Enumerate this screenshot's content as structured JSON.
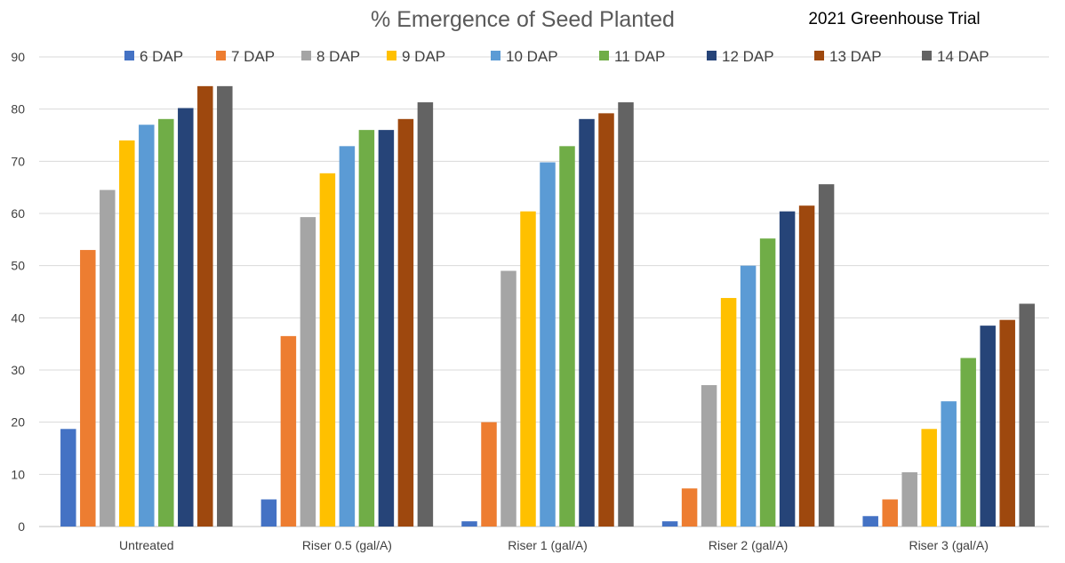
{
  "chart_data": {
    "type": "bar",
    "title": "% Emergence of Seed Planted",
    "subtitle": "2021 Greenhouse Trial",
    "categories": [
      "Untreated",
      "Riser 0.5 (gal/A)",
      "Riser 1 (gal/A)",
      "Riser 2 (gal/A)",
      "Riser 3 (gal/A)"
    ],
    "ylim": [
      0,
      90
    ],
    "yticks": [
      0,
      10,
      20,
      30,
      40,
      50,
      60,
      70,
      80,
      90
    ],
    "grid": true,
    "legend_position": "top",
    "series": [
      {
        "name": "6 DAP",
        "color": "#4472c4",
        "values": [
          18.7,
          5.2,
          1.0,
          1.0,
          2.0
        ]
      },
      {
        "name": "7 DAP",
        "color": "#ed7d31",
        "values": [
          53.0,
          36.5,
          20.0,
          7.3,
          5.2
        ]
      },
      {
        "name": "8 DAP",
        "color": "#a5a5a5",
        "values": [
          64.5,
          59.3,
          49.0,
          27.1,
          10.4
        ]
      },
      {
        "name": "9 DAP",
        "color": "#ffc000",
        "values": [
          74.0,
          67.7,
          60.4,
          43.8,
          18.7
        ]
      },
      {
        "name": "10 DAP",
        "color": "#5b9bd5",
        "values": [
          77.0,
          72.9,
          69.8,
          50.0,
          24.0
        ]
      },
      {
        "name": "11 DAP",
        "color": "#70ad47",
        "values": [
          78.1,
          76.0,
          72.9,
          55.2,
          32.3
        ]
      },
      {
        "name": "12 DAP",
        "color": "#264478",
        "values": [
          80.2,
          76.0,
          78.1,
          60.4,
          38.5
        ]
      },
      {
        "name": "13 DAP",
        "color": "#9e480e",
        "values": [
          84.4,
          78.1,
          79.2,
          61.5,
          39.6
        ]
      },
      {
        "name": "14 DAP",
        "color": "#636363",
        "values": [
          84.4,
          81.3,
          81.3,
          65.6,
          42.7
        ]
      }
    ]
  }
}
